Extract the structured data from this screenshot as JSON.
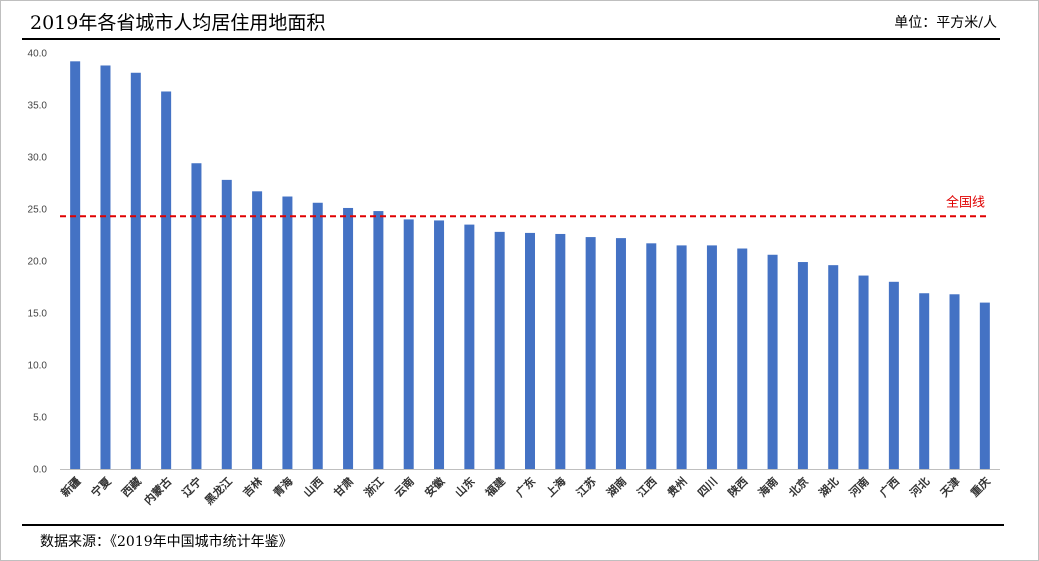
{
  "header": {
    "title": "2019年各省城市人均居住用地面积",
    "unit": "单位：平方米/人"
  },
  "footer": {
    "source": "数据来源：《2019年中国城市统计年鉴》"
  },
  "colors": {
    "bar": "#4472c4",
    "reference_line": "#e00000",
    "rule": "#000000",
    "frame": "#bfbfbf"
  },
  "chart_data": {
    "type": "bar",
    "title": "2019年各省城市人均居住用地面积",
    "xlabel": "",
    "ylabel": "",
    "unit": "单位：平方米/人",
    "ylim": [
      0,
      40
    ],
    "yticks": [
      "0.0",
      "5.0",
      "10.0",
      "15.0",
      "20.0",
      "25.0",
      "30.0",
      "35.0",
      "40.0"
    ],
    "grid": false,
    "categories": [
      "新疆",
      "宁夏",
      "西藏",
      "内蒙古",
      "辽宁",
      "黑龙江",
      "吉林",
      "青海",
      "山西",
      "甘肃",
      "浙江",
      "云南",
      "安徽",
      "山东",
      "福建",
      "广东",
      "上海",
      "江苏",
      "湖南",
      "江西",
      "贵州",
      "四川",
      "陕西",
      "海南",
      "北京",
      "湖北",
      "河南",
      "广西",
      "河北",
      "天津",
      "重庆"
    ],
    "values": [
      39.2,
      38.8,
      38.1,
      36.3,
      29.4,
      27.8,
      26.7,
      26.2,
      25.6,
      25.1,
      24.8,
      24.0,
      23.9,
      23.5,
      22.8,
      22.7,
      22.6,
      22.3,
      22.2,
      21.7,
      21.5,
      21.5,
      21.2,
      20.6,
      19.9,
      19.6,
      18.6,
      18.0,
      16.9,
      16.8,
      16.0
    ],
    "reference_line": {
      "label": "全国线",
      "value": 24.3
    }
  }
}
